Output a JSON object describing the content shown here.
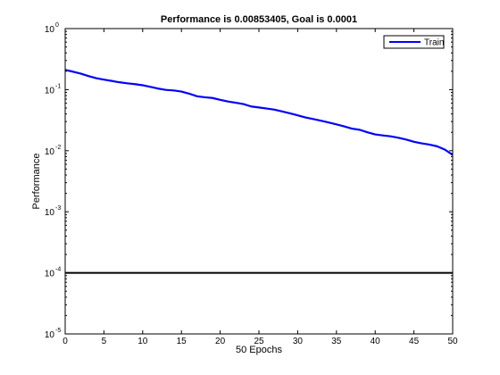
{
  "chart_data": {
    "type": "line",
    "title": "Performance is 0.00853405, Goal is 0.0001",
    "xlabel": "50 Epochs",
    "ylabel": "Performance",
    "y_scale": "log",
    "xlim": [
      0,
      50
    ],
    "ylim": [
      1e-05,
      1
    ],
    "grid": false,
    "legend_position": "top-right",
    "x_ticks": [
      {
        "value": 0,
        "label": "0"
      },
      {
        "value": 5,
        "label": "5"
      },
      {
        "value": 10,
        "label": "10"
      },
      {
        "value": 15,
        "label": "15"
      },
      {
        "value": 20,
        "label": "20"
      },
      {
        "value": 25,
        "label": "25"
      },
      {
        "value": 30,
        "label": "30"
      },
      {
        "value": 35,
        "label": "35"
      },
      {
        "value": 40,
        "label": "40"
      },
      {
        "value": 45,
        "label": "45"
      },
      {
        "value": 50,
        "label": "50"
      }
    ],
    "y_ticks": [
      {
        "value": 1,
        "base": "10",
        "exponent": "0"
      },
      {
        "value": 0.1,
        "base": "10",
        "exponent": "-1"
      },
      {
        "value": 0.01,
        "base": "10",
        "exponent": "-2"
      },
      {
        "value": 0.001,
        "base": "10",
        "exponent": "-3"
      },
      {
        "value": 0.0001,
        "base": "10",
        "exponent": "-4"
      },
      {
        "value": 1e-05,
        "base": "10",
        "exponent": "-5"
      }
    ],
    "series": [
      {
        "name": "Train",
        "color": "#0000ff",
        "x": [
          0,
          1,
          2,
          3,
          4,
          5,
          6,
          7,
          8,
          9,
          10,
          11,
          12,
          13,
          14,
          15,
          16,
          17,
          18,
          19,
          20,
          21,
          22,
          23,
          24,
          25,
          26,
          27,
          28,
          29,
          30,
          31,
          32,
          33,
          34,
          35,
          36,
          37,
          38,
          39,
          40,
          41,
          42,
          43,
          44,
          45,
          46,
          47,
          48,
          49,
          50
        ],
        "y": [
          0.21,
          0.197,
          0.183,
          0.167,
          0.154,
          0.146,
          0.139,
          0.132,
          0.127,
          0.123,
          0.118,
          0.111,
          0.104,
          0.099,
          0.097,
          0.093,
          0.086,
          0.078,
          0.075,
          0.073,
          0.068,
          0.064,
          0.061,
          0.058,
          0.053,
          0.051,
          0.049,
          0.047,
          0.044,
          0.041,
          0.038,
          0.035,
          0.033,
          0.031,
          0.029,
          0.027,
          0.025,
          0.023,
          0.022,
          0.02,
          0.0185,
          0.0178,
          0.0172,
          0.0163,
          0.0152,
          0.014,
          0.0132,
          0.0126,
          0.0118,
          0.0104,
          0.00853
        ]
      },
      {
        "name": "Goal",
        "color": "#000000",
        "x": [
          0,
          50
        ],
        "y": [
          0.0001,
          0.0001
        ]
      }
    ]
  }
}
